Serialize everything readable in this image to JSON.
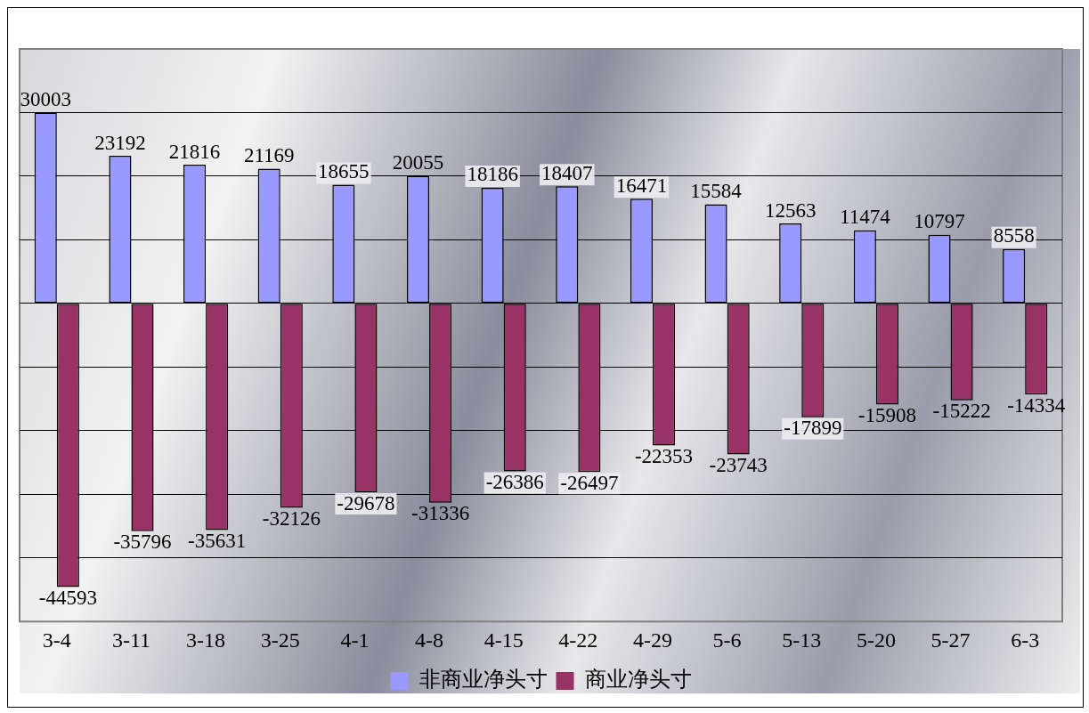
{
  "chart_data": {
    "type": "bar",
    "categories": [
      "3-4",
      "3-11",
      "3-18",
      "3-25",
      "4-1",
      "4-8",
      "4-15",
      "4-22",
      "4-29",
      "5-6",
      "5-13",
      "5-20",
      "5-27",
      "6-3"
    ],
    "series": [
      {
        "name": "非商业净头寸",
        "color": "#9999ff",
        "values": [
          30003,
          23192,
          21816,
          21169,
          18655,
          20055,
          18186,
          18407,
          16471,
          15584,
          12563,
          11474,
          10797,
          8558
        ]
      },
      {
        "name": "商业净头寸",
        "color": "#993366",
        "values": [
          -44593,
          -35796,
          -35631,
          -32126,
          -29678,
          -31336,
          -26386,
          -26497,
          -22353,
          -23743,
          -17899,
          -15908,
          -15222,
          -14334
        ]
      }
    ],
    "ylim": [
      -50000,
      40000
    ],
    "yticks": [
      {
        "value": -40000,
        "label": null
      },
      {
        "value": -30000,
        "label": null
      },
      {
        "value": -20000,
        "label": null
      },
      {
        "value": -10000,
        "label": null
      },
      {
        "value": 0,
        "label": null
      },
      {
        "value": 10000,
        "label": null
      },
      {
        "value": 20000,
        "label": null
      },
      {
        "value": 30000,
        "label": null
      }
    ],
    "tick_labels": "x",
    "grid": "y",
    "legend": "bottom",
    "data_labels": true
  }
}
